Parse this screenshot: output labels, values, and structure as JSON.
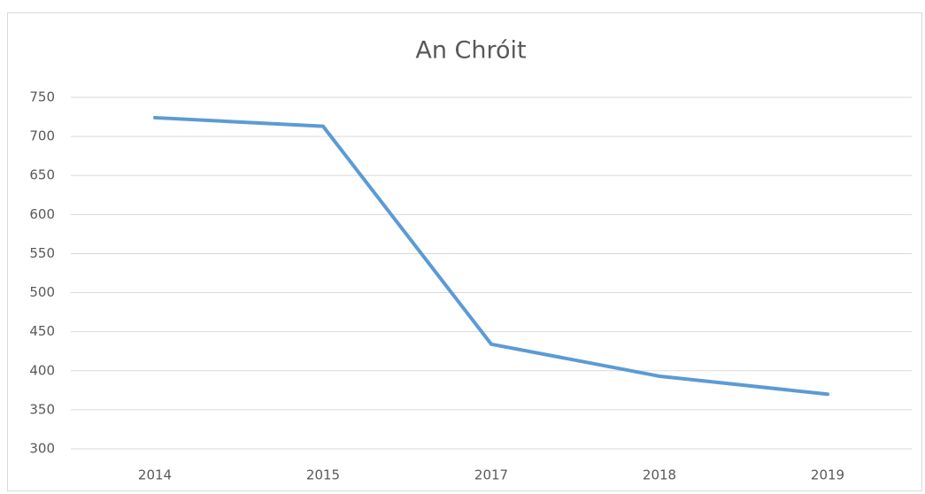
{
  "chart_data": {
    "type": "line",
    "title": "An Chróit",
    "categories": [
      "2014",
      "2015",
      "2017",
      "2018",
      "2019"
    ],
    "series": [
      {
        "name": "An Chróit",
        "color": "#5b9bd5",
        "values": [
          724,
          713,
          434,
          393,
          370
        ]
      }
    ],
    "ylim": [
      300,
      750
    ],
    "yticks": [
      300,
      350,
      400,
      450,
      500,
      550,
      600,
      650,
      700,
      750
    ],
    "grid": true
  }
}
